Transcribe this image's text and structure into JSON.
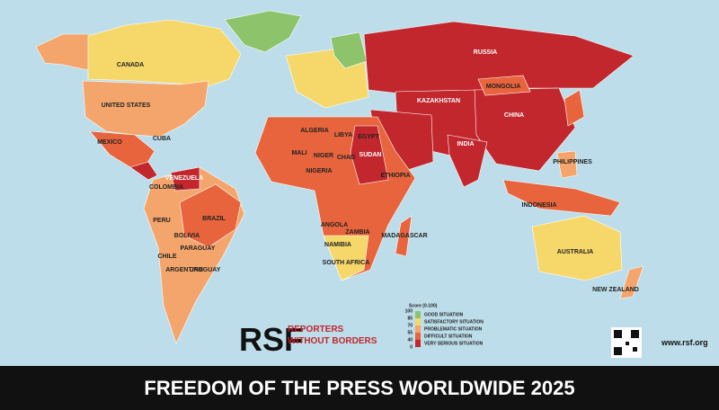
{
  "title": "FREEDOM OF THE PRESS WORLDWIDE 2025",
  "logo": {
    "mark": "RSF",
    "line1": "REPORTERS",
    "line2": "WITHOUT BORDERS"
  },
  "website": "www.rsf.org",
  "legend": {
    "title": "Score (0-100)",
    "ticks": [
      100,
      85,
      70,
      55,
      40,
      0
    ],
    "items": [
      {
        "label": "GOOD SITUATION",
        "color": "#8cc36b"
      },
      {
        "label": "SATISFACTORY SITUATION",
        "color": "#f6d86a"
      },
      {
        "label": "PROBLEMATIC SITUATION",
        "color": "#f4a56c"
      },
      {
        "label": "DIFFICULT SITUATION",
        "color": "#e8643d"
      },
      {
        "label": "VERY SERIOUS SITUATION",
        "color": "#c1272d"
      }
    ]
  },
  "map": {
    "labels": [
      "CANADA",
      "UNITED STATES",
      "MEXICO",
      "CUBA",
      "VENEZUELA",
      "COLOMBIA",
      "PERU",
      "BRAZIL",
      "BOLIVIA",
      "PARAGUAY",
      "CHILE",
      "ARGENTINA",
      "URUGUAY",
      "RUSSIA",
      "KAZAKHSTAN",
      "MONGOLIA",
      "CHINA",
      "INDIA",
      "ALGERIA",
      "LIBYA",
      "EGYPT",
      "MALI",
      "NIGER",
      "CHAD",
      "SUDAN",
      "NIGERIA",
      "ETHIOPIA",
      "ANGOLA",
      "ZAMBIA",
      "NAMIBIA",
      "SOUTH AFRICA",
      "MADAGASCAR",
      "PHILIPPINES",
      "INDONESIA",
      "AUSTRALIA",
      "NEW ZEALAND"
    ]
  }
}
